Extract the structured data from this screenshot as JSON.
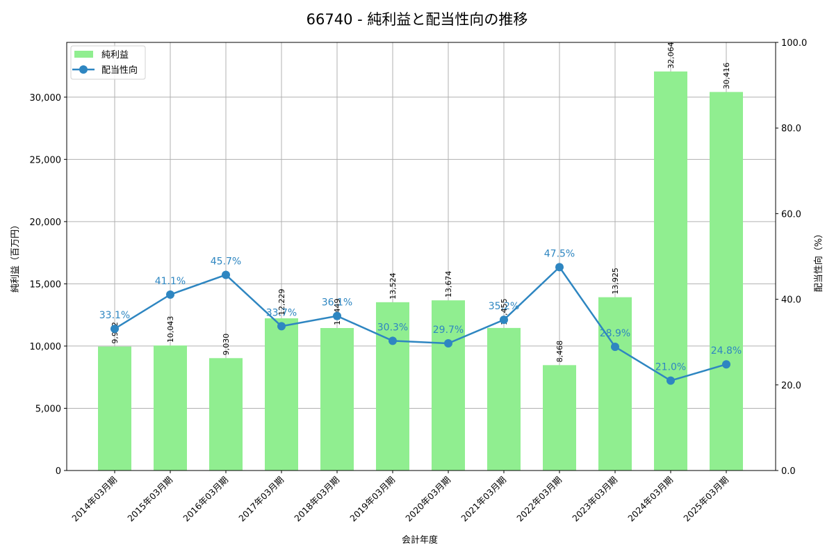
{
  "title": "66740 - 純利益と配当性向の推移",
  "colors": {
    "bar": "#90ee90",
    "line": "#2e86c1",
    "grid": "#b0b0b0"
  },
  "legend": {
    "bar": "純利益",
    "line": "配当性向"
  },
  "chart_data": {
    "type": "bar+line",
    "title": "66740 - 純利益と配当性向の推移",
    "xlabel": "会計年度",
    "ylabel": "純利益（百万円）",
    "y2label": "配当性向（%）",
    "ylim": [
      0,
      34400
    ],
    "y2lim": [
      0,
      100
    ],
    "yticks": [
      "0",
      "5,000",
      "10,000",
      "15,000",
      "20,000",
      "25,000",
      "30,000"
    ],
    "y2ticks": [
      "0.0",
      "20.0",
      "40.0",
      "60.0",
      "80.0",
      "100.0"
    ],
    "grid": true,
    "legend_position": "upper left",
    "categories": [
      "2014年03月期",
      "2015年03月期",
      "2016年03月期",
      "2017年03月期",
      "2018年03月期",
      "2019年03月期",
      "2020年03月期",
      "2021年03月期",
      "2022年03月期",
      "2023年03月期",
      "2024年03月期",
      "2025年03月期"
    ],
    "series": [
      {
        "name": "純利益",
        "type": "bar",
        "axis": "left",
        "values": [
          9962,
          10043,
          9030,
          12229,
          11449,
          13524,
          13674,
          11455,
          8468,
          13925,
          32064,
          30416
        ],
        "labels": [
          "9,962",
          "10,043",
          "9,030",
          "12,229",
          "11,449",
          "13,524",
          "13,674",
          "11,455",
          "8,468",
          "13,925",
          "32,064",
          "30,416"
        ]
      },
      {
        "name": "配当性向",
        "type": "line",
        "axis": "right",
        "values": [
          33.1,
          41.1,
          45.7,
          33.7,
          36.1,
          30.3,
          29.7,
          35.2,
          47.5,
          28.9,
          21.0,
          24.8
        ],
        "labels": [
          "33.1%",
          "41.1%",
          "45.7%",
          "33.7%",
          "36.1%",
          "30.3%",
          "29.7%",
          "35.2%",
          "47.5%",
          "28.9%",
          "21.0%",
          "24.8%"
        ]
      }
    ]
  }
}
